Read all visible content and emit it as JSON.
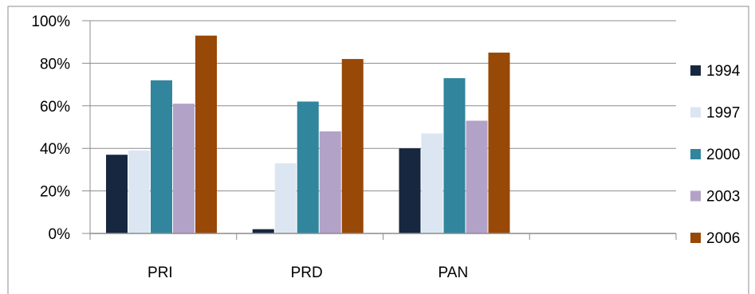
{
  "chart_data": {
    "type": "bar",
    "categories": [
      "PRI",
      "PRD",
      "PAN",
      ""
    ],
    "series": [
      {
        "name": "1994",
        "values": [
          37,
          2,
          40,
          null
        ],
        "color": "#17273f"
      },
      {
        "name": "1997",
        "values": [
          39,
          33,
          47,
          null
        ],
        "color": "#dce6f2"
      },
      {
        "name": "2000",
        "values": [
          72,
          62,
          73,
          null
        ],
        "color": "#31859c"
      },
      {
        "name": "2003",
        "values": [
          61,
          48,
          53,
          null
        ],
        "color": "#b3a2c7"
      },
      {
        "name": "2006",
        "values": [
          93,
          82,
          85,
          null
        ],
        "color": "#984807"
      }
    ],
    "yticks": [
      "0%",
      "20%",
      "40%",
      "60%",
      "80%",
      "100%"
    ],
    "ylim": [
      0,
      100
    ],
    "grid": true,
    "legend_position": "right"
  }
}
